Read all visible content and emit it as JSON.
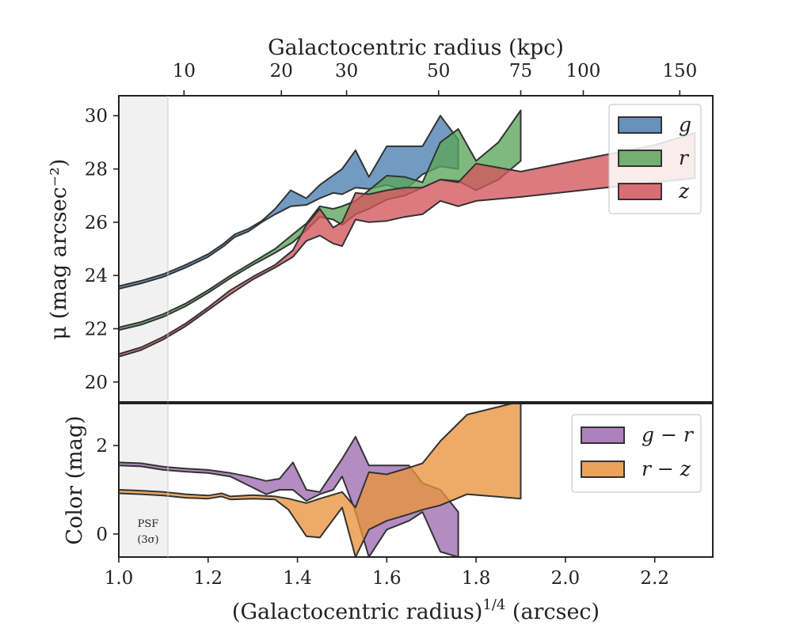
{
  "chart_data": [
    {
      "type": "area",
      "panel": "surface-brightness",
      "top_xlabel": "Galactocentric radius (kpc)",
      "top_xticks": [
        {
          "kpc": 10,
          "label": "10",
          "x14": 1.146
        },
        {
          "kpc": 20,
          "label": "20",
          "x14": 1.364
        },
        {
          "kpc": 30,
          "label": "30",
          "x14": 1.51
        },
        {
          "kpc": 50,
          "label": "50",
          "x14": 1.716
        },
        {
          "kpc": 75,
          "label": "75",
          "x14": 1.9
        },
        {
          "kpc": 100,
          "label": "100",
          "x14": 2.04
        },
        {
          "kpc": 150,
          "label": "150",
          "x14": 2.256
        }
      ],
      "ylabel": "μ (mag arcsec⁻²)",
      "ylim": [
        30.75,
        19.25
      ],
      "yticks": [
        20,
        22,
        24,
        26,
        28,
        30
      ],
      "xlim": [
        1.0,
        2.33
      ],
      "grid": false,
      "legend": "top-right",
      "series": [
        {
          "name": "g",
          "color": "#4c7fb0",
          "upper": [
            [
              1.0,
              23.5
            ],
            [
              1.05,
              23.7
            ],
            [
              1.1,
              23.95
            ],
            [
              1.15,
              24.3
            ],
            [
              1.2,
              24.7
            ],
            [
              1.235,
              25.1
            ],
            [
              1.26,
              25.45
            ],
            [
              1.29,
              25.65
            ],
            [
              1.32,
              26.0
            ],
            [
              1.35,
              26.3
            ],
            [
              1.385,
              26.6
            ],
            [
              1.42,
              26.65
            ],
            [
              1.45,
              26.9
            ],
            [
              1.48,
              27.1
            ],
            [
              1.5,
              27.05
            ],
            [
              1.53,
              27.3
            ],
            [
              1.56,
              27.25
            ],
            [
              1.6,
              27.4
            ],
            [
              1.64,
              27.2
            ],
            [
              1.68,
              27.8
            ],
            [
              1.72,
              28.1
            ],
            [
              1.76,
              28.0
            ]
          ],
          "lower": [
            [
              1.0,
              23.6
            ],
            [
              1.05,
              23.8
            ],
            [
              1.1,
              24.05
            ],
            [
              1.15,
              24.4
            ],
            [
              1.2,
              24.8
            ],
            [
              1.235,
              25.2
            ],
            [
              1.26,
              25.55
            ],
            [
              1.29,
              25.75
            ],
            [
              1.32,
              26.05
            ],
            [
              1.35,
              26.5
            ],
            [
              1.385,
              27.2
            ],
            [
              1.42,
              26.9
            ],
            [
              1.45,
              27.4
            ],
            [
              1.5,
              28.0
            ],
            [
              1.53,
              28.7
            ],
            [
              1.56,
              27.7
            ],
            [
              1.6,
              28.85
            ],
            [
              1.64,
              28.85
            ],
            [
              1.68,
              28.85
            ],
            [
              1.72,
              30.0
            ],
            [
              1.76,
              29.1
            ]
          ]
        },
        {
          "name": "r",
          "color": "#5aa55a",
          "upper": [
            [
              1.0,
              21.95
            ],
            [
              1.05,
              22.15
            ],
            [
              1.1,
              22.45
            ],
            [
              1.15,
              22.85
            ],
            [
              1.2,
              23.35
            ],
            [
              1.25,
              23.9
            ],
            [
              1.3,
              24.4
            ],
            [
              1.35,
              24.85
            ],
            [
              1.39,
              25.25
            ],
            [
              1.42,
              25.7
            ],
            [
              1.45,
              26.2
            ],
            [
              1.48,
              26.1
            ],
            [
              1.5,
              25.9
            ],
            [
              1.53,
              26.3
            ],
            [
              1.56,
              26.5
            ],
            [
              1.6,
              26.85
            ],
            [
              1.64,
              27.0
            ],
            [
              1.68,
              27.3
            ],
            [
              1.72,
              27.6
            ],
            [
              1.76,
              27.55
            ],
            [
              1.8,
              27.2
            ],
            [
              1.85,
              27.6
            ],
            [
              1.9,
              28.3
            ]
          ],
          "lower": [
            [
              1.0,
              22.05
            ],
            [
              1.05,
              22.25
            ],
            [
              1.1,
              22.55
            ],
            [
              1.15,
              22.95
            ],
            [
              1.2,
              23.45
            ],
            [
              1.25,
              24.0
            ],
            [
              1.3,
              24.5
            ],
            [
              1.35,
              25.0
            ],
            [
              1.39,
              25.55
            ],
            [
              1.42,
              25.95
            ],
            [
              1.45,
              26.6
            ],
            [
              1.48,
              26.5
            ],
            [
              1.5,
              26.6
            ],
            [
              1.53,
              26.8
            ],
            [
              1.56,
              27.2
            ],
            [
              1.6,
              27.75
            ],
            [
              1.64,
              27.7
            ],
            [
              1.68,
              27.5
            ],
            [
              1.72,
              29.0
            ],
            [
              1.76,
              29.5
            ],
            [
              1.8,
              28.3
            ],
            [
              1.85,
              29.0
            ],
            [
              1.9,
              30.2
            ]
          ]
        },
        {
          "name": "z",
          "color": "#d4545c",
          "upper": [
            [
              1.0,
              20.95
            ],
            [
              1.05,
              21.2
            ],
            [
              1.1,
              21.6
            ],
            [
              1.15,
              22.1
            ],
            [
              1.2,
              22.7
            ],
            [
              1.25,
              23.3
            ],
            [
              1.3,
              23.85
            ],
            [
              1.35,
              24.3
            ],
            [
              1.39,
              24.7
            ],
            [
              1.42,
              25.3
            ],
            [
              1.45,
              25.5
            ],
            [
              1.48,
              25.2
            ],
            [
              1.5,
              25.1
            ],
            [
              1.53,
              26.1
            ],
            [
              1.56,
              26.0
            ],
            [
              1.6,
              26.05
            ],
            [
              1.64,
              26.2
            ],
            [
              1.68,
              26.3
            ],
            [
              1.72,
              26.8
            ],
            [
              1.76,
              26.6
            ],
            [
              1.8,
              26.8
            ],
            [
              1.9,
              26.95
            ],
            [
              2.2,
              27.5
            ],
            [
              2.29,
              27.65
            ]
          ],
          "lower": [
            [
              1.0,
              21.05
            ],
            [
              1.05,
              21.3
            ],
            [
              1.1,
              21.7
            ],
            [
              1.15,
              22.2
            ],
            [
              1.2,
              22.8
            ],
            [
              1.25,
              23.45
            ],
            [
              1.3,
              23.95
            ],
            [
              1.35,
              24.4
            ],
            [
              1.39,
              24.95
            ],
            [
              1.42,
              25.9
            ],
            [
              1.45,
              26.5
            ],
            [
              1.48,
              25.8
            ],
            [
              1.5,
              26.0
            ],
            [
              1.53,
              27.1
            ],
            [
              1.56,
              27.05
            ],
            [
              1.6,
              27.2
            ],
            [
              1.64,
              27.3
            ],
            [
              1.68,
              27.3
            ],
            [
              1.72,
              27.6
            ],
            [
              1.76,
              27.5
            ],
            [
              1.8,
              28.2
            ],
            [
              1.9,
              27.9
            ],
            [
              2.2,
              28.9
            ],
            [
              2.29,
              29.35
            ]
          ]
        }
      ]
    },
    {
      "type": "area",
      "panel": "color",
      "xlabel": "(Galactocentric radius)¹ᐟ⁴ (arcsec)",
      "xlim": [
        1.0,
        2.33
      ],
      "xticks": [
        "1.0",
        "1.2",
        "1.4",
        "1.6",
        "1.8",
        "2.0",
        "2.2"
      ],
      "ylabel": "Color (mag)",
      "ylim": [
        -0.52,
        2.95
      ],
      "yticks": [
        0,
        2
      ],
      "grid": false,
      "legend": "top-right",
      "annotation": "PSF (3σ)",
      "psf_shade_x": [
        1.0,
        1.11
      ],
      "series": [
        {
          "name": "g − r",
          "color": "#9e6bb0",
          "upper": [
            [
              1.0,
              1.62
            ],
            [
              1.05,
              1.6
            ],
            [
              1.1,
              1.52
            ],
            [
              1.15,
              1.48
            ],
            [
              1.2,
              1.45
            ],
            [
              1.25,
              1.38
            ],
            [
              1.29,
              1.3
            ],
            [
              1.33,
              1.2
            ],
            [
              1.36,
              1.25
            ],
            [
              1.39,
              1.62
            ],
            [
              1.42,
              1.0
            ],
            [
              1.45,
              0.95
            ],
            [
              1.48,
              1.4
            ],
            [
              1.5,
              1.7
            ],
            [
              1.53,
              2.2
            ],
            [
              1.56,
              1.55
            ],
            [
              1.6,
              1.55
            ],
            [
              1.65,
              1.55
            ],
            [
              1.68,
              1.15
            ],
            [
              1.72,
              1.0
            ],
            [
              1.76,
              0.5
            ]
          ],
          "lower": [
            [
              1.0,
              1.55
            ],
            [
              1.05,
              1.53
            ],
            [
              1.1,
              1.45
            ],
            [
              1.15,
              1.41
            ],
            [
              1.2,
              1.38
            ],
            [
              1.25,
              1.3
            ],
            [
              1.29,
              1.1
            ],
            [
              1.33,
              0.9
            ],
            [
              1.36,
              1.0
            ],
            [
              1.39,
              1.0
            ],
            [
              1.42,
              0.75
            ],
            [
              1.45,
              0.9
            ],
            [
              1.48,
              1.0
            ],
            [
              1.5,
              1.3
            ],
            [
              1.53,
              0.5
            ],
            [
              1.56,
              -0.52
            ],
            [
              1.6,
              0.1
            ],
            [
              1.65,
              0.3
            ],
            [
              1.68,
              0.5
            ],
            [
              1.72,
              -0.4
            ],
            [
              1.76,
              -0.52
            ]
          ]
        },
        {
          "name": "r − z",
          "color": "#e8933c",
          "upper": [
            [
              1.0,
              1.0
            ],
            [
              1.05,
              0.98
            ],
            [
              1.1,
              0.95
            ],
            [
              1.15,
              0.9
            ],
            [
              1.2,
              0.87
            ],
            [
              1.23,
              0.92
            ],
            [
              1.25,
              0.85
            ],
            [
              1.3,
              0.88
            ],
            [
              1.35,
              0.85
            ],
            [
              1.38,
              0.8
            ],
            [
              1.42,
              0.7
            ],
            [
              1.45,
              0.8
            ],
            [
              1.5,
              0.95
            ],
            [
              1.53,
              0.6
            ],
            [
              1.56,
              1.4
            ],
            [
              1.6,
              1.35
            ],
            [
              1.65,
              1.5
            ],
            [
              1.68,
              1.6
            ],
            [
              1.72,
              2.1
            ],
            [
              1.78,
              2.7
            ],
            [
              1.9,
              3.0
            ]
          ],
          "lower": [
            [
              1.0,
              0.92
            ],
            [
              1.05,
              0.9
            ],
            [
              1.1,
              0.87
            ],
            [
              1.15,
              0.82
            ],
            [
              1.2,
              0.8
            ],
            [
              1.23,
              0.85
            ],
            [
              1.25,
              0.78
            ],
            [
              1.3,
              0.8
            ],
            [
              1.35,
              0.78
            ],
            [
              1.38,
              0.55
            ],
            [
              1.42,
              -0.05
            ],
            [
              1.45,
              -0.08
            ],
            [
              1.5,
              0.6
            ],
            [
              1.53,
              -0.52
            ],
            [
              1.56,
              0.1
            ],
            [
              1.6,
              0.3
            ],
            [
              1.65,
              0.45
            ],
            [
              1.68,
              0.55
            ],
            [
              1.72,
              0.65
            ],
            [
              1.78,
              0.9
            ],
            [
              1.9,
              0.8
            ]
          ]
        }
      ]
    }
  ]
}
